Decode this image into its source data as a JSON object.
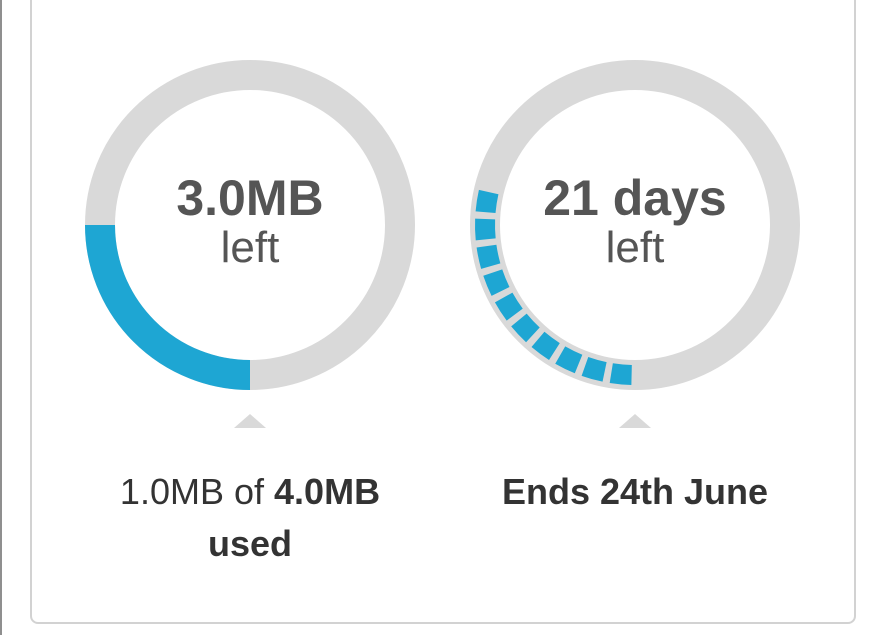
{
  "data_usage": {
    "remaining_value": "3.0MB",
    "remaining_unit": "left",
    "used_amount": "1.0MB",
    "of_word": "of",
    "total_amount": "4.0MB",
    "used_word": "used",
    "used_fraction": 0.25
  },
  "period": {
    "remaining_value": "21 days",
    "remaining_unit": "left",
    "ends_text": "Ends 24th June",
    "elapsed_fraction": 0.25,
    "segment_count": 10
  },
  "colors": {
    "accent": "#1ea6d3",
    "track": "#d9d9d9",
    "text": "#555555"
  }
}
